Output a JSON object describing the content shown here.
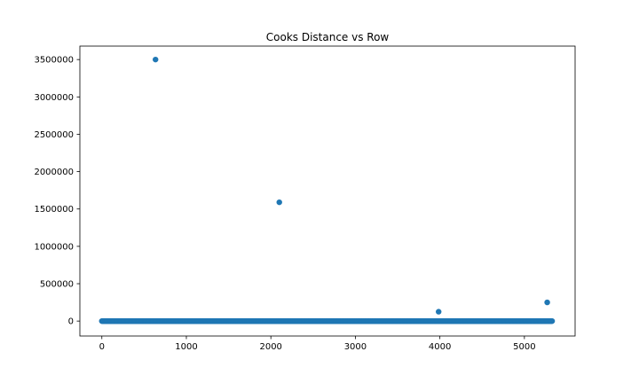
{
  "chart_data": {
    "type": "scatter",
    "title": "Cooks Distance vs Row",
    "xlabel": "",
    "ylabel": "",
    "xlim": [
      -260,
      5600
    ],
    "ylim": [
      -200000,
      3680000
    ],
    "xticks": [
      0,
      1000,
      2000,
      3000,
      4000,
      5000
    ],
    "xtick_labels": [
      "0",
      "1000",
      "2000",
      "3000",
      "4000",
      "5000"
    ],
    "yticks": [
      0,
      500000,
      1000000,
      1500000,
      2000000,
      2500000,
      3000000,
      3500000
    ],
    "ytick_labels": [
      "0",
      "500000",
      "1000000",
      "1500000",
      "2000000",
      "2500000",
      "3000000",
      "3500000"
    ],
    "grid": false,
    "legend": "none",
    "color": "#1f77b4",
    "baseline": {
      "x_start": 0,
      "x_end": 5330,
      "x_step": 6,
      "y": 0
    },
    "outliers": [
      {
        "x": 635,
        "y": 3500000
      },
      {
        "x": 2100,
        "y": 1590000
      },
      {
        "x": 3985,
        "y": 125000
      },
      {
        "x": 5270,
        "y": 250000
      }
    ]
  }
}
